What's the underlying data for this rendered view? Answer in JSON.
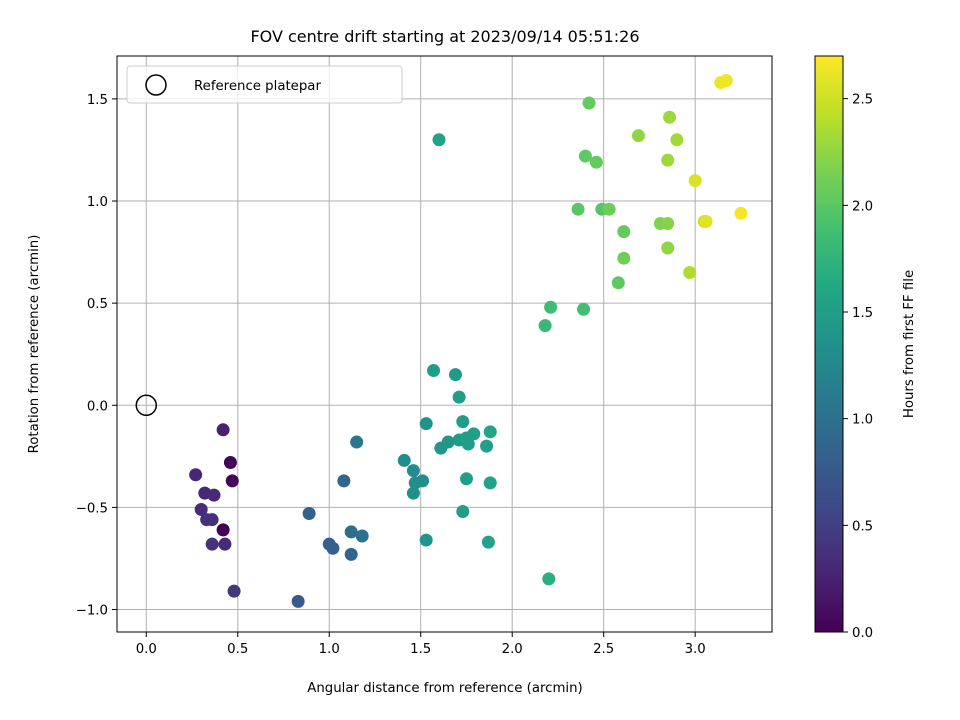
{
  "chart_data": {
    "type": "scatter",
    "title": "FOV centre drift starting at 2023/09/14 05:51:26",
    "xlabel": "Angular distance from reference (arcmin)",
    "ylabel": "Rotation from reference (arcmin)",
    "xlim": [
      -0.16,
      3.42
    ],
    "ylim": [
      -1.11,
      1.71
    ],
    "xticks": [
      0.0,
      0.5,
      1.0,
      1.5,
      2.0,
      2.5,
      3.0
    ],
    "yticks": [
      -1.0,
      -0.5,
      0.0,
      0.5,
      1.0,
      1.5
    ],
    "xtick_labels": [
      "0.0",
      "0.5",
      "1.0",
      "1.5",
      "2.0",
      "2.5",
      "3.0"
    ],
    "ytick_labels": [
      "−1.0",
      "−0.5",
      "0.0",
      "0.5",
      "1.0",
      "1.5"
    ],
    "grid": true,
    "legend": {
      "position": "top-left",
      "entries": [
        "Reference platepar"
      ]
    },
    "reference_point": {
      "x": 0.0,
      "y": 0.0
    },
    "colorbar": {
      "label": "Hours from first FF file",
      "colormap": "viridis",
      "range": [
        0.0,
        2.7
      ],
      "ticks": [
        0.0,
        0.5,
        1.0,
        1.5,
        2.0,
        2.5
      ],
      "tick_labels": [
        "0.0",
        "0.5",
        "1.0",
        "1.5",
        "2.0",
        "2.5"
      ]
    },
    "points": [
      {
        "x": 0.42,
        "y": -0.61,
        "h": 0.0
      },
      {
        "x": 0.46,
        "y": -0.28,
        "h": 0.03
      },
      {
        "x": 0.47,
        "y": -0.37,
        "h": 0.05
      },
      {
        "x": 0.42,
        "y": -0.12,
        "h": 0.25
      },
      {
        "x": 0.27,
        "y": -0.34,
        "h": 0.3
      },
      {
        "x": 0.32,
        "y": -0.43,
        "h": 0.3
      },
      {
        "x": 0.37,
        "y": -0.44,
        "h": 0.32
      },
      {
        "x": 0.3,
        "y": -0.51,
        "h": 0.34
      },
      {
        "x": 0.33,
        "y": -0.56,
        "h": 0.36
      },
      {
        "x": 0.36,
        "y": -0.56,
        "h": 0.36
      },
      {
        "x": 0.36,
        "y": -0.68,
        "h": 0.38
      },
      {
        "x": 0.43,
        "y": -0.68,
        "h": 0.32
      },
      {
        "x": 0.48,
        "y": -0.91,
        "h": 0.42
      },
      {
        "x": 0.83,
        "y": -0.96,
        "h": 0.75
      },
      {
        "x": 0.89,
        "y": -0.53,
        "h": 0.85
      },
      {
        "x": 1.0,
        "y": -0.68,
        "h": 0.82
      },
      {
        "x": 1.02,
        "y": -0.7,
        "h": 0.82
      },
      {
        "x": 1.08,
        "y": -0.37,
        "h": 0.9
      },
      {
        "x": 1.12,
        "y": -0.73,
        "h": 0.88
      },
      {
        "x": 1.12,
        "y": -0.62,
        "h": 0.95
      },
      {
        "x": 1.15,
        "y": -0.18,
        "h": 1.05
      },
      {
        "x": 1.18,
        "y": -0.64,
        "h": 0.98
      },
      {
        "x": 1.41,
        "y": -0.27,
        "h": 1.3
      },
      {
        "x": 1.46,
        "y": -0.32,
        "h": 1.3
      },
      {
        "x": 1.47,
        "y": -0.38,
        "h": 1.32
      },
      {
        "x": 1.46,
        "y": -0.43,
        "h": 1.32
      },
      {
        "x": 1.51,
        "y": -0.37,
        "h": 1.32
      },
      {
        "x": 1.53,
        "y": -0.09,
        "h": 1.35
      },
      {
        "x": 1.53,
        "y": -0.66,
        "h": 1.4
      },
      {
        "x": 1.57,
        "y": 0.17,
        "h": 1.48
      },
      {
        "x": 1.61,
        "y": -0.21,
        "h": 1.42
      },
      {
        "x": 1.65,
        "y": -0.18,
        "h": 1.42
      },
      {
        "x": 1.69,
        "y": 0.15,
        "h": 1.45
      },
      {
        "x": 1.71,
        "y": 0.04,
        "h": 1.48
      },
      {
        "x": 1.71,
        "y": -0.17,
        "h": 1.45
      },
      {
        "x": 1.73,
        "y": -0.08,
        "h": 1.48
      },
      {
        "x": 1.73,
        "y": -0.52,
        "h": 1.5
      },
      {
        "x": 1.75,
        "y": -0.36,
        "h": 1.5
      },
      {
        "x": 1.75,
        "y": -0.16,
        "h": 1.52
      },
      {
        "x": 1.76,
        "y": -0.19,
        "h": 1.5
      },
      {
        "x": 1.79,
        "y": -0.14,
        "h": 1.52
      },
      {
        "x": 1.86,
        "y": -0.2,
        "h": 1.52
      },
      {
        "x": 1.87,
        "y": -0.67,
        "h": 1.55
      },
      {
        "x": 1.88,
        "y": -0.38,
        "h": 1.55
      },
      {
        "x": 1.88,
        "y": -0.13,
        "h": 1.58
      },
      {
        "x": 1.6,
        "y": 1.3,
        "h": 1.55
      },
      {
        "x": 2.2,
        "y": -0.85,
        "h": 1.7
      },
      {
        "x": 2.18,
        "y": 0.39,
        "h": 1.8
      },
      {
        "x": 2.21,
        "y": 0.48,
        "h": 1.85
      },
      {
        "x": 2.39,
        "y": 0.47,
        "h": 1.88
      },
      {
        "x": 2.36,
        "y": 0.96,
        "h": 2.0
      },
      {
        "x": 2.4,
        "y": 1.22,
        "h": 2.02
      },
      {
        "x": 2.42,
        "y": 1.48,
        "h": 2.05
      },
      {
        "x": 2.46,
        "y": 1.19,
        "h": 2.05
      },
      {
        "x": 2.49,
        "y": 0.96,
        "h": 1.98
      },
      {
        "x": 2.53,
        "y": 0.96,
        "h": 2.1
      },
      {
        "x": 2.58,
        "y": 0.6,
        "h": 2.02
      },
      {
        "x": 2.61,
        "y": 0.72,
        "h": 2.1
      },
      {
        "x": 2.61,
        "y": 0.85,
        "h": 2.05
      },
      {
        "x": 2.69,
        "y": 1.32,
        "h": 2.25
      },
      {
        "x": 2.81,
        "y": 0.89,
        "h": 2.18
      },
      {
        "x": 2.85,
        "y": 0.89,
        "h": 2.2
      },
      {
        "x": 2.85,
        "y": 0.77,
        "h": 2.25
      },
      {
        "x": 2.85,
        "y": 1.2,
        "h": 2.3
      },
      {
        "x": 2.86,
        "y": 1.41,
        "h": 2.3
      },
      {
        "x": 2.9,
        "y": 1.3,
        "h": 2.32
      },
      {
        "x": 2.97,
        "y": 0.65,
        "h": 2.38
      },
      {
        "x": 3.0,
        "y": 1.1,
        "h": 2.55
      },
      {
        "x": 3.05,
        "y": 0.9,
        "h": 2.5
      },
      {
        "x": 3.06,
        "y": 0.9,
        "h": 2.58
      },
      {
        "x": 3.14,
        "y": 1.58,
        "h": 2.62
      },
      {
        "x": 3.17,
        "y": 1.59,
        "h": 2.64
      },
      {
        "x": 3.25,
        "y": 0.94,
        "h": 2.68
      }
    ]
  }
}
